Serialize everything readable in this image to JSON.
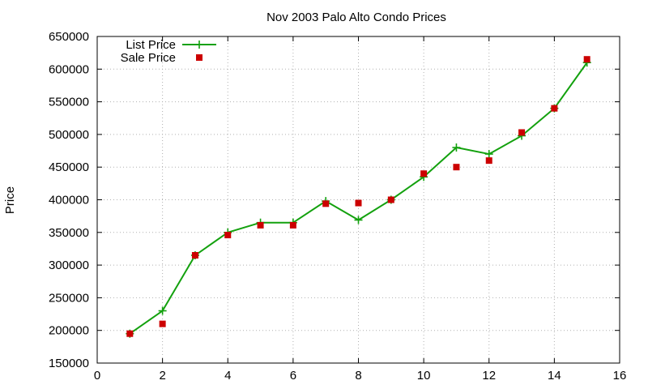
{
  "chart_data": {
    "type": "line",
    "title": "Nov 2003 Palo Alto Condo Prices",
    "xlabel": "",
    "ylabel": "Price",
    "xlim": [
      0,
      16
    ],
    "ylim": [
      150000,
      650000
    ],
    "xticks": [
      0,
      2,
      4,
      6,
      8,
      10,
      12,
      14,
      16
    ],
    "yticks": [
      150000,
      200000,
      250000,
      300000,
      350000,
      400000,
      450000,
      500000,
      550000,
      600000,
      650000
    ],
    "grid": true,
    "legend_position": "top-left",
    "series": [
      {
        "name": "List Price",
        "style": "line-with-plus-markers",
        "color": "#13a10e",
        "x": [
          1,
          2,
          3,
          4,
          5,
          6,
          7,
          8,
          9,
          10,
          11,
          12,
          13,
          14,
          15
        ],
        "y": [
          195000,
          230000,
          315000,
          350000,
          365000,
          365000,
          398000,
          369000,
          400000,
          435000,
          480000,
          470000,
          498000,
          540000,
          610000
        ]
      },
      {
        "name": "Sale Price",
        "style": "square-markers",
        "color": "#cc0000",
        "x": [
          1,
          2,
          3,
          4,
          5,
          6,
          7,
          8,
          9,
          10,
          11,
          12,
          13,
          14,
          15
        ],
        "y": [
          195000,
          210000,
          315000,
          346000,
          361000,
          361000,
          394000,
          395000,
          400000,
          440000,
          450000,
          460000,
          503000,
          540000,
          615000
        ]
      }
    ]
  }
}
